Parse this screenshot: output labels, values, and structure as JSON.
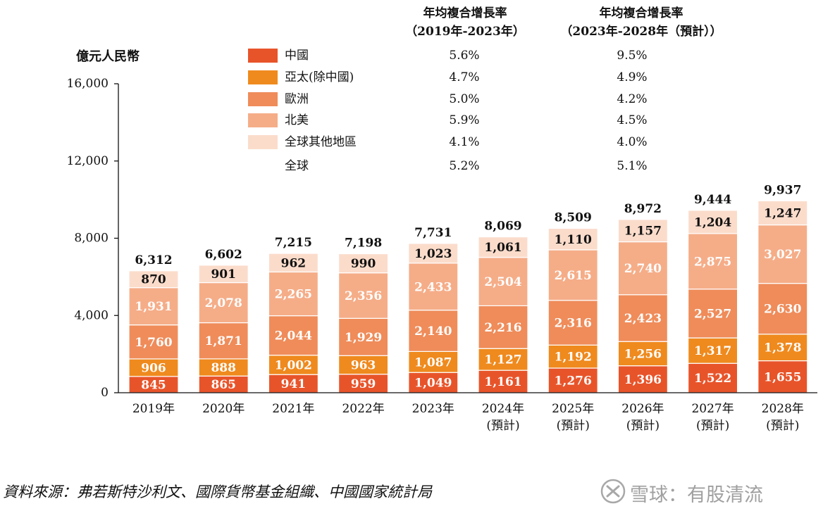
{
  "header": {
    "cagr1_title": "年均複合增長率",
    "cagr1_period": "（2019年-2023年）",
    "cagr2_title": "年均複合增長率",
    "cagr2_period": "（2023年-2028年（預計））"
  },
  "legend": [
    {
      "name": "中國",
      "cagr1": "5.6%",
      "cagr2": "9.5%",
      "color": "#e8542a"
    },
    {
      "name": "亞太(除中國)",
      "cagr1": "4.7%",
      "cagr2": "4.9%",
      "color": "#ef8a1e"
    },
    {
      "name": "歐洲",
      "cagr1": "5.0%",
      "cagr2": "4.2%",
      "color": "#ef8c5a"
    },
    {
      "name": "北美",
      "cagr1": "5.9%",
      "cagr2": "4.5%",
      "color": "#f5ad88"
    },
    {
      "name": "全球其他地區",
      "cagr1": "4.1%",
      "cagr2": "4.0%",
      "color": "#fbdccb"
    },
    {
      "name": "全球",
      "cagr1": "5.2%",
      "cagr2": "5.1%",
      "color": ""
    }
  ],
  "chart_data": {
    "type": "bar",
    "stacked": true,
    "ylabel": "億元人民幣",
    "ylim": [
      0,
      16000
    ],
    "yticks": [
      "0",
      "4,000",
      "8,000",
      "12,000",
      "16,000"
    ],
    "ytick_values": [
      0,
      4000,
      8000,
      12000,
      16000
    ],
    "categories": [
      "2019年",
      "2020年",
      "2021年",
      "2022年",
      "2023年",
      "2024年",
      "2025年",
      "2026年",
      "2027年",
      "2028年"
    ],
    "category_notes": [
      "",
      "",
      "",
      "",
      "",
      "(預計)",
      "(預計)",
      "(預計)",
      "(預計)",
      "(預計)"
    ],
    "series": [
      {
        "name": "中國",
        "color": "#e8542a",
        "values": [
          845,
          865,
          941,
          959,
          1049,
          1161,
          1276,
          1396,
          1522,
          1655
        ],
        "labels": [
          "845",
          "865",
          "941",
          "959",
          "1,049",
          "1,161",
          "1,276",
          "1,396",
          "1,522",
          "1,655"
        ]
      },
      {
        "name": "亞太(除中國)",
        "color": "#ef8a1e",
        "values": [
          906,
          888,
          1002,
          963,
          1087,
          1127,
          1192,
          1256,
          1317,
          1378
        ],
        "labels": [
          "906",
          "888",
          "1,002",
          "963",
          "1,087",
          "1,127",
          "1,192",
          "1,256",
          "1,317",
          "1,378"
        ]
      },
      {
        "name": "歐洲",
        "color": "#ef8c5a",
        "values": [
          1760,
          1871,
          2044,
          1929,
          2140,
          2216,
          2316,
          2423,
          2527,
          2630
        ],
        "labels": [
          "1,760",
          "1,871",
          "2,044",
          "1,929",
          "2,140",
          "2,216",
          "2,316",
          "2,423",
          "2,527",
          "2,630"
        ]
      },
      {
        "name": "北美",
        "color": "#f5ad88",
        "values": [
          1931,
          2078,
          2265,
          2356,
          2433,
          2504,
          2615,
          2740,
          2875,
          3027
        ],
        "labels": [
          "1,931",
          "2,078",
          "2,265",
          "2,356",
          "2,433",
          "2,504",
          "2,615",
          "2,740",
          "2,875",
          "3,027"
        ]
      },
      {
        "name": "全球其他地區",
        "color": "#fbdccb",
        "values": [
          870,
          901,
          962,
          990,
          1023,
          1061,
          1110,
          1157,
          1204,
          1247
        ],
        "labels": [
          "870",
          "901",
          "962",
          "990",
          "1,023",
          "1,061",
          "1,110",
          "1,157",
          "1,204",
          "1,247"
        ]
      }
    ],
    "totals": [
      6312,
      6602,
      7215,
      7198,
      7731,
      8069,
      8509,
      8972,
      9444,
      9937
    ],
    "total_labels": [
      "6,312",
      "6,602",
      "7,215",
      "7,198",
      "7,731",
      "8,069",
      "8,509",
      "8,972",
      "9,444",
      "9,937"
    ]
  },
  "footer": {
    "source": "資料來源：弗若斯特沙利文、國際貨幣基金組織、中國國家統計局",
    "watermark": "雪球：有股清流",
    "watermark_icon": "snowball-logo-icon"
  }
}
